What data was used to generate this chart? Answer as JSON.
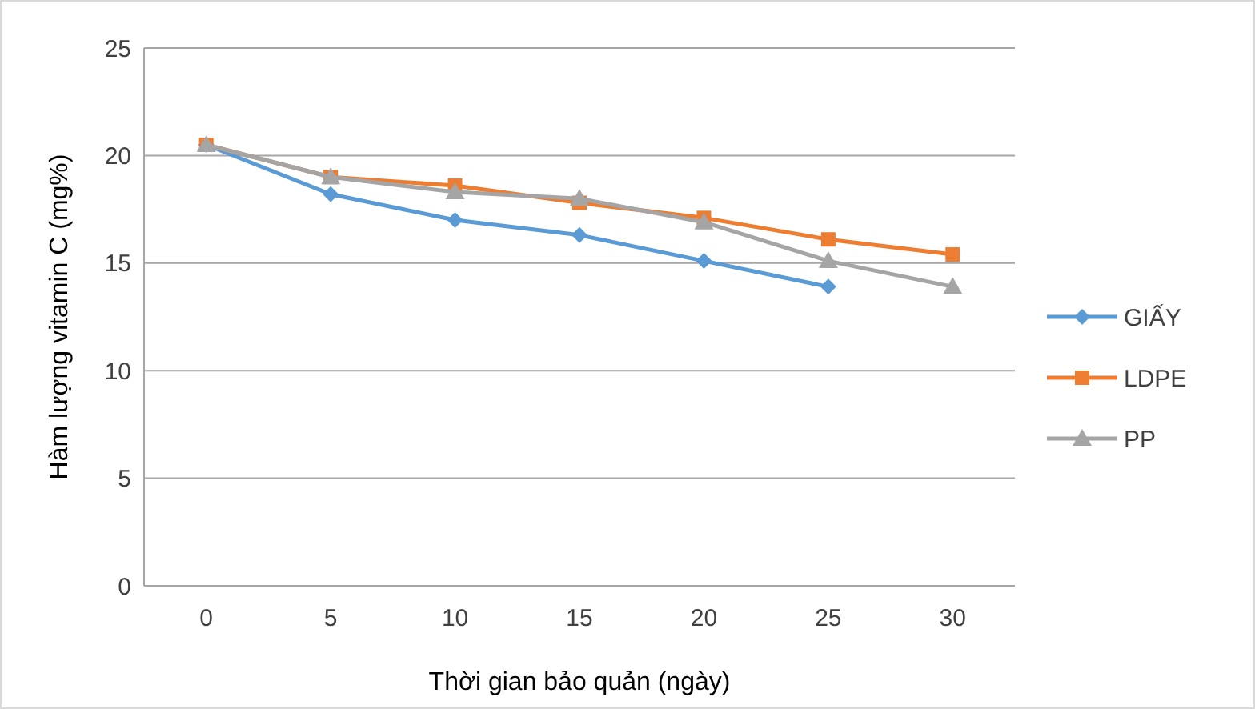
{
  "chart_data": {
    "type": "line",
    "xlabel": "Thời gian bảo quản (ngày)",
    "ylabel": "Hàm lượng vitamin C (mg%)",
    "categories": [
      "0",
      "5",
      "10",
      "15",
      "20",
      "25",
      "30"
    ],
    "series": [
      {
        "name": "GIẤY",
        "color": "#5b9bd5",
        "marker": "diamond",
        "values": [
          20.5,
          18.2,
          17.0,
          16.3,
          15.1,
          13.9,
          null
        ]
      },
      {
        "name": "LDPE",
        "color": "#ed7d31",
        "marker": "square",
        "values": [
          20.5,
          19.0,
          18.6,
          17.8,
          17.1,
          16.1,
          15.4
        ]
      },
      {
        "name": "PP",
        "color": "#a5a5a5",
        "marker": "triangle",
        "values": [
          20.5,
          19.0,
          18.3,
          18.0,
          16.9,
          15.1,
          13.9
        ]
      }
    ],
    "ylim": [
      0,
      25
    ],
    "yticks": [
      0,
      5,
      10,
      15,
      20,
      25
    ],
    "grid": "y",
    "legend": "right"
  }
}
